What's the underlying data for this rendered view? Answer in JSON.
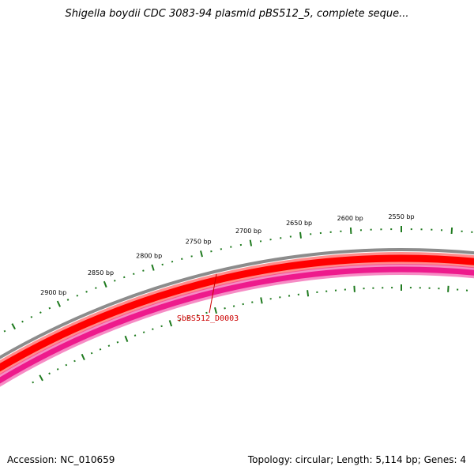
{
  "title": "Shigella boydii CDC 3083-94 plasmid pBS512_5, complete seque...",
  "footer": {
    "accession": "Accession: NC_010659",
    "summary": "Topology: circular; Length: 5,114 bp; Genes: 4"
  },
  "map": {
    "ruler_labels": [
      {
        "bp": 2900,
        "text": "2900 bp"
      },
      {
        "bp": 2850,
        "text": "2850 bp"
      },
      {
        "bp": 2800,
        "text": "2800 bp"
      },
      {
        "bp": 2750,
        "text": "2750 bp"
      },
      {
        "bp": 2700,
        "text": "2700 bp"
      },
      {
        "bp": 2650,
        "text": "2650 bp"
      },
      {
        "bp": 2600,
        "text": "2600 bp"
      },
      {
        "bp": 2550,
        "text": "2550 bp"
      }
    ],
    "gene_label": "SbBS512_D0003",
    "colors": {
      "backbone": "#8c8c8c",
      "forward_feature": "#ff0000",
      "reverse_feature": "#ee1a8c",
      "ticks": "#1e7a1e",
      "gene_label": "#cc0000"
    }
  }
}
